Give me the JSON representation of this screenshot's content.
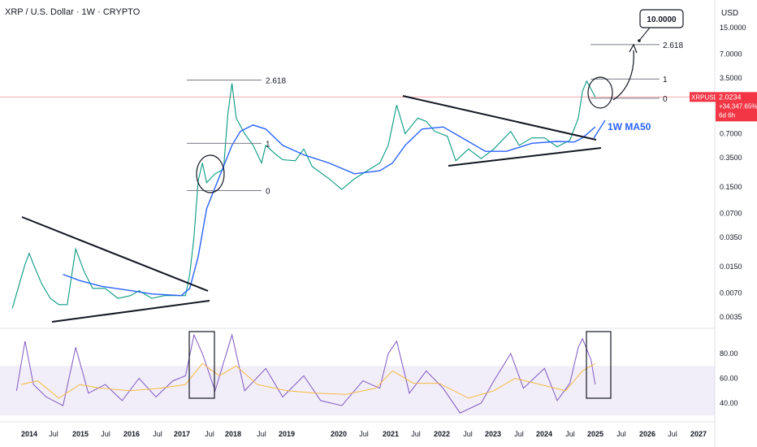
{
  "header": {
    "title": "XRP / U.S. Dollar · 1W · CRYPTO",
    "currency": "USD"
  },
  "chart_data": {
    "type": "line",
    "price_axis": {
      "scale": "log",
      "ticks": [
        "15.0000",
        "7.0000",
        "3.5000",
        "1.5000",
        "0.7000",
        "0.3500",
        "0.1500",
        "0.0700",
        "0.0350",
        "0.0150",
        "0.0070",
        "0.0035"
      ],
      "tick_values": [
        15,
        7,
        3.5,
        1.5,
        0.7,
        0.35,
        0.15,
        0.07,
        0.035,
        0.015,
        0.007,
        0.0035
      ]
    },
    "rsi_axis": {
      "ticks": [
        "80.00",
        "60.00",
        "40.00"
      ],
      "tick_values": [
        80,
        60,
        40
      ],
      "band": [
        30,
        70
      ]
    },
    "time_axis": [
      "2014",
      "Jul",
      "2015",
      "Jul",
      "2016",
      "Jul",
      "2017",
      "Jul",
      "2018",
      "Jul",
      "2019",
      "2020",
      "Jul",
      "2021",
      "Jul",
      "2022",
      "Jul",
      "2023",
      "Jul",
      "2024",
      "Jul",
      "2025",
      "Jul",
      "2026",
      "Jul",
      "2027"
    ],
    "current_price": {
      "symbol": "XRPUSD",
      "price": "2.0234",
      "change": "+34,347.65%",
      "countdown": "6d 6h",
      "value": 2.0234,
      "color": "#f23645"
    },
    "series": [
      {
        "name": "",
        "color": "#089981",
        "values": [
          {
            "x": "2013-09",
            "y": 0.0045
          },
          {
            "x": "2013-12",
            "y": 0.016
          },
          {
            "x": "2014-01",
            "y": 0.022
          },
          {
            "x": "2014-02",
            "y": 0.016
          },
          {
            "x": "2014-04",
            "y": 0.009
          },
          {
            "x": "2014-06",
            "y": 0.006
          },
          {
            "x": "2014-08",
            "y": 0.005
          },
          {
            "x": "2014-10",
            "y": 0.005
          },
          {
            "x": "2014-12",
            "y": 0.025
          },
          {
            "x": "2015-02",
            "y": 0.013
          },
          {
            "x": "2015-04",
            "y": 0.008
          },
          {
            "x": "2015-07",
            "y": 0.008
          },
          {
            "x": "2015-10",
            "y": 0.006
          },
          {
            "x": "2016-01",
            "y": 0.0065
          },
          {
            "x": "2016-03",
            "y": 0.0075
          },
          {
            "x": "2016-06",
            "y": 0.006
          },
          {
            "x": "2016-09",
            "y": 0.0065
          },
          {
            "x": "2016-12",
            "y": 0.0065
          },
          {
            "x": "2017-02",
            "y": 0.0065
          },
          {
            "x": "2017-03",
            "y": 0.012
          },
          {
            "x": "2017-04",
            "y": 0.035
          },
          {
            "x": "2017-05",
            "y": 0.18
          },
          {
            "x": "2017-06",
            "y": 0.3
          },
          {
            "x": "2017-07",
            "y": 0.17
          },
          {
            "x": "2017-09",
            "y": 0.22
          },
          {
            "x": "2017-11",
            "y": 0.25
          },
          {
            "x": "2017-12",
            "y": 1.2
          },
          {
            "x": "2018-01",
            "y": 3.0
          },
          {
            "x": "2018-02",
            "y": 1.1
          },
          {
            "x": "2018-04",
            "y": 0.7
          },
          {
            "x": "2018-06",
            "y": 0.5
          },
          {
            "x": "2018-08",
            "y": 0.3
          },
          {
            "x": "2018-09",
            "y": 0.5
          },
          {
            "x": "2018-11",
            "y": 0.4
          },
          {
            "x": "2019-01",
            "y": 0.33
          },
          {
            "x": "2019-04",
            "y": 0.32
          },
          {
            "x": "2019-06",
            "y": 0.45
          },
          {
            "x": "2019-08",
            "y": 0.27
          },
          {
            "x": "2019-12",
            "y": 0.19
          },
          {
            "x": "2020-03",
            "y": 0.14
          },
          {
            "x": "2020-06",
            "y": 0.19
          },
          {
            "x": "2020-09",
            "y": 0.24
          },
          {
            "x": "2020-12",
            "y": 0.3
          },
          {
            "x": "2021-02",
            "y": 0.5
          },
          {
            "x": "2021-04",
            "y": 1.6
          },
          {
            "x": "2021-06",
            "y": 0.7
          },
          {
            "x": "2021-09",
            "y": 1.1
          },
          {
            "x": "2021-11",
            "y": 1.0
          },
          {
            "x": "2022-01",
            "y": 0.75
          },
          {
            "x": "2022-04",
            "y": 0.65
          },
          {
            "x": "2022-06",
            "y": 0.32
          },
          {
            "x": "2022-09",
            "y": 0.45
          },
          {
            "x": "2022-12",
            "y": 0.34
          },
          {
            "x": "2023-03",
            "y": 0.45
          },
          {
            "x": "2023-07",
            "y": 0.75
          },
          {
            "x": "2023-09",
            "y": 0.5
          },
          {
            "x": "2023-12",
            "y": 0.62
          },
          {
            "x": "2024-03",
            "y": 0.62
          },
          {
            "x": "2024-06",
            "y": 0.48
          },
          {
            "x": "2024-09",
            "y": 0.58
          },
          {
            "x": "2024-11",
            "y": 1.1
          },
          {
            "x": "2024-12",
            "y": 2.4
          },
          {
            "x": "2025-01",
            "y": 3.2
          },
          {
            "x": "2025-03",
            "y": 2.0234
          }
        ]
      },
      {
        "name": "1W MA50",
        "color": "#2962ff",
        "values": [
          {
            "x": "2014-09",
            "y": 0.012
          },
          {
            "x": "2015-01",
            "y": 0.01
          },
          {
            "x": "2015-06",
            "y": 0.0085
          },
          {
            "x": "2016-01",
            "y": 0.0075
          },
          {
            "x": "2016-06",
            "y": 0.0068
          },
          {
            "x": "2017-01",
            "y": 0.0065
          },
          {
            "x": "2017-03",
            "y": 0.008
          },
          {
            "x": "2017-05",
            "y": 0.02
          },
          {
            "x": "2017-07",
            "y": 0.08
          },
          {
            "x": "2017-10",
            "y": 0.2
          },
          {
            "x": "2018-01",
            "y": 0.5
          },
          {
            "x": "2018-03",
            "y": 0.75
          },
          {
            "x": "2018-06",
            "y": 0.9
          },
          {
            "x": "2018-09",
            "y": 0.8
          },
          {
            "x": "2019-01",
            "y": 0.5
          },
          {
            "x": "2019-06",
            "y": 0.38
          },
          {
            "x": "2019-12",
            "y": 0.3
          },
          {
            "x": "2020-06",
            "y": 0.22
          },
          {
            "x": "2020-12",
            "y": 0.24
          },
          {
            "x": "2021-03",
            "y": 0.3
          },
          {
            "x": "2021-06",
            "y": 0.5
          },
          {
            "x": "2021-10",
            "y": 0.8
          },
          {
            "x": "2022-03",
            "y": 0.85
          },
          {
            "x": "2022-08",
            "y": 0.6
          },
          {
            "x": "2023-01",
            "y": 0.42
          },
          {
            "x": "2023-06",
            "y": 0.42
          },
          {
            "x": "2023-12",
            "y": 0.53
          },
          {
            "x": "2024-06",
            "y": 0.56
          },
          {
            "x": "2024-10",
            "y": 0.55
          },
          {
            "x": "2024-12",
            "y": 0.62
          },
          {
            "x": "2025-03",
            "y": 0.85
          }
        ]
      }
    ],
    "rsi": {
      "rsi_color": "#7e57c2",
      "ma_color": "#f5b942",
      "values": [
        {
          "x": "2013-10",
          "y": 50
        },
        {
          "x": "2013-12",
          "y": 90
        },
        {
          "x": "2014-02",
          "y": 55
        },
        {
          "x": "2014-05",
          "y": 45
        },
        {
          "x": "2014-09",
          "y": 38
        },
        {
          "x": "2014-12",
          "y": 85
        },
        {
          "x": "2015-03",
          "y": 48
        },
        {
          "x": "2015-07",
          "y": 55
        },
        {
          "x": "2015-11",
          "y": 42
        },
        {
          "x": "2016-03",
          "y": 60
        },
        {
          "x": "2016-07",
          "y": 45
        },
        {
          "x": "2016-11",
          "y": 58
        },
        {
          "x": "2017-02",
          "y": 62
        },
        {
          "x": "2017-04",
          "y": 95
        },
        {
          "x": "2017-06",
          "y": 80
        },
        {
          "x": "2017-09",
          "y": 50
        },
        {
          "x": "2018-01",
          "y": 95
        },
        {
          "x": "2018-04",
          "y": 50
        },
        {
          "x": "2018-09",
          "y": 68
        },
        {
          "x": "2019-01",
          "y": 45
        },
        {
          "x": "2019-06",
          "y": 62
        },
        {
          "x": "2019-10",
          "y": 42
        },
        {
          "x": "2020-03",
          "y": 38
        },
        {
          "x": "2020-08",
          "y": 58
        },
        {
          "x": "2020-12",
          "y": 52
        },
        {
          "x": "2021-02",
          "y": 80
        },
        {
          "x": "2021-04",
          "y": 90
        },
        {
          "x": "2021-07",
          "y": 48
        },
        {
          "x": "2021-11",
          "y": 66
        },
        {
          "x": "2022-03",
          "y": 52
        },
        {
          "x": "2022-07",
          "y": 32
        },
        {
          "x": "2022-12",
          "y": 40
        },
        {
          "x": "2023-03",
          "y": 58
        },
        {
          "x": "2023-07",
          "y": 80
        },
        {
          "x": "2023-10",
          "y": 52
        },
        {
          "x": "2024-03",
          "y": 68
        },
        {
          "x": "2024-06",
          "y": 42
        },
        {
          "x": "2024-09",
          "y": 56
        },
        {
          "x": "2024-11",
          "y": 85
        },
        {
          "x": "2024-12",
          "y": 92
        },
        {
          "x": "2025-02",
          "y": 75
        },
        {
          "x": "2025-03",
          "y": 55
        }
      ],
      "ma": [
        {
          "x": "2013-11",
          "y": 55
        },
        {
          "x": "2014-03",
          "y": 58
        },
        {
          "x": "2014-08",
          "y": 44
        },
        {
          "x": "2015-01",
          "y": 55
        },
        {
          "x": "2015-06",
          "y": 52
        },
        {
          "x": "2016-01",
          "y": 50
        },
        {
          "x": "2016-08",
          "y": 52
        },
        {
          "x": "2017-02",
          "y": 55
        },
        {
          "x": "2017-06",
          "y": 72
        },
        {
          "x": "2017-10",
          "y": 62
        },
        {
          "x": "2018-02",
          "y": 70
        },
        {
          "x": "2018-07",
          "y": 55
        },
        {
          "x": "2019-02",
          "y": 50
        },
        {
          "x": "2019-09",
          "y": 48
        },
        {
          "x": "2020-04",
          "y": 47
        },
        {
          "x": "2020-11",
          "y": 52
        },
        {
          "x": "2021-03",
          "y": 66
        },
        {
          "x": "2021-08",
          "y": 56
        },
        {
          "x": "2022-02",
          "y": 56
        },
        {
          "x": "2022-09",
          "y": 44
        },
        {
          "x": "2023-03",
          "y": 50
        },
        {
          "x": "2023-08",
          "y": 60
        },
        {
          "x": "2024-02",
          "y": 55
        },
        {
          "x": "2024-08",
          "y": 50
        },
        {
          "x": "2024-12",
          "y": 66
        },
        {
          "x": "2025-03",
          "y": 72
        }
      ]
    },
    "annotations": {
      "fib_labels": [
        "2.618",
        "1",
        "0",
        "2.618",
        "1",
        "0"
      ],
      "fib_2017": [
        {
          "label": "2.618",
          "value": 3.3
        },
        {
          "label": "1",
          "value": 0.53
        },
        {
          "label": "0",
          "value": 0.135
        }
      ],
      "fib_2025": [
        {
          "label": "2.618",
          "value": 9.2
        },
        {
          "label": "1",
          "value": 3.4
        },
        {
          "label": "0",
          "value": 1.95
        }
      ],
      "target": "10.0000",
      "ma_label": "1W MA50",
      "line_color": "#131722"
    }
  }
}
